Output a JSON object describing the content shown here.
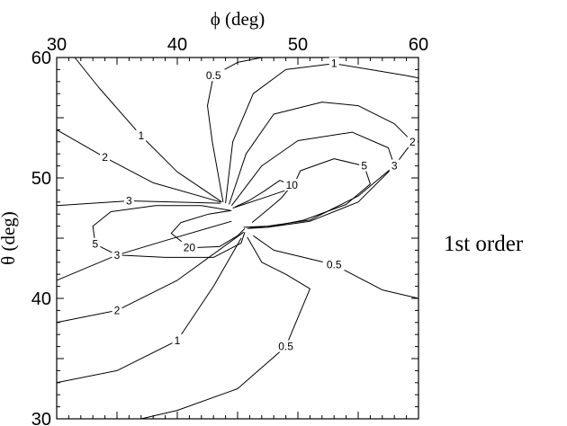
{
  "chart_data": {
    "type": "contour",
    "xlabel": "ϕ (deg)",
    "ylabel": "θ (deg)",
    "xlim": [
      30,
      60
    ],
    "ylim": [
      30,
      60
    ],
    "x_ticks": [
      30,
      40,
      50,
      60
    ],
    "y_ticks": [
      30,
      40,
      50,
      60
    ],
    "x_axis_position": "top",
    "annotation": "1st order",
    "contour_levels": [
      0.5,
      1,
      2,
      3,
      5,
      10,
      20
    ],
    "contours": [
      {
        "label": "0.5",
        "points": [
          [
            43.8,
            48
          ],
          [
            42.9,
            53
          ],
          [
            42.5,
            56
          ],
          [
            43,
            58.5
          ],
          [
            45,
            59.6
          ],
          [
            47,
            60
          ]
        ]
      },
      {
        "label": "1",
        "points": [
          [
            44,
            47.9
          ],
          [
            44.6,
            53
          ],
          [
            46.3,
            57
          ],
          [
            49,
            59
          ],
          [
            53,
            59.5
          ],
          [
            56,
            59
          ],
          [
            59,
            58.5
          ],
          [
            60,
            58.3
          ]
        ]
      },
      {
        "label": "2",
        "points": [
          [
            44.3,
            47.8
          ],
          [
            45.7,
            52
          ],
          [
            48,
            55.3
          ],
          [
            52,
            56.3
          ],
          [
            55,
            56
          ],
          [
            58,
            54.5
          ],
          [
            59.5,
            53
          ],
          [
            58,
            51
          ],
          [
            55,
            48.5
          ],
          [
            51,
            46.5
          ],
          [
            47.5,
            46
          ],
          [
            45.5,
            45.9
          ]
        ]
      },
      {
        "label": "3",
        "points": [
          [
            44.5,
            47.7
          ],
          [
            47,
            51
          ],
          [
            50,
            53.1
          ],
          [
            54.5,
            53.8
          ],
          [
            57.5,
            52.5
          ],
          [
            58,
            51
          ],
          [
            55,
            48
          ],
          [
            51,
            46.4
          ],
          [
            47.5,
            45.9
          ],
          [
            45.8,
            45.8
          ]
        ]
      },
      {
        "label": "5",
        "points": [
          [
            44.6,
            47.5
          ],
          [
            47,
            48.3
          ],
          [
            48.8,
            48.9
          ],
          [
            49.7,
            49.5
          ],
          [
            50.2,
            50.6
          ],
          [
            53,
            51.6
          ],
          [
            55.5,
            51
          ],
          [
            56,
            49.5
          ],
          [
            54,
            47.8
          ],
          [
            50.5,
            46.5
          ],
          [
            47.5,
            45.9
          ],
          [
            46,
            45.9
          ]
        ]
      },
      {
        "label": "5",
        "points": [
          [
            44.4,
            47.3
          ],
          [
            42,
            47.7
          ],
          [
            38.2,
            47.7
          ],
          [
            34.5,
            47.2
          ],
          [
            33,
            46
          ],
          [
            33.2,
            44.5
          ],
          [
            35,
            43.6
          ],
          [
            39,
            43.4
          ],
          [
            43,
            43.4
          ],
          [
            45.3,
            44.6
          ],
          [
            45.6,
            45.5
          ]
        ]
      },
      {
        "label": "10",
        "points": [
          [
            44.8,
            47.6
          ],
          [
            45.9,
            48.1
          ],
          [
            47.2,
            48.9
          ],
          [
            48.5,
            49.8
          ],
          [
            49.5,
            49.4
          ],
          [
            48.6,
            48.3
          ],
          [
            47.3,
            47.2
          ],
          [
            46.2,
            46.3
          ]
        ]
      },
      {
        "label": "20",
        "points": [
          [
            44.5,
            47.3
          ],
          [
            42.6,
            47
          ],
          [
            40.3,
            46.3
          ],
          [
            39.5,
            45.4
          ],
          [
            41,
            44.2
          ],
          [
            43.5,
            44.3
          ],
          [
            45,
            45.2
          ],
          [
            45.6,
            45.8
          ]
        ]
      },
      {
        "label": "1",
        "points": [
          [
            43.7,
            48
          ],
          [
            40,
            50.5
          ],
          [
            37,
            53.5
          ],
          [
            33.5,
            57.5
          ],
          [
            31.5,
            60
          ]
        ]
      },
      {
        "label": "2",
        "points": [
          [
            43.6,
            48
          ],
          [
            38,
            49.6
          ],
          [
            34,
            51.7
          ],
          [
            30,
            54
          ]
        ]
      },
      {
        "label": "3",
        "points": [
          [
            43.6,
            47.9
          ],
          [
            36,
            48.1
          ],
          [
            30,
            47.7
          ]
        ]
      },
      {
        "label": "3",
        "points": [
          [
            44.5,
            46.4
          ],
          [
            39,
            44.8
          ],
          [
            35,
            43.6
          ],
          [
            30,
            41.5
          ]
        ]
      },
      {
        "label": "2",
        "points": [
          [
            45.5,
            45.5
          ],
          [
            40,
            41.5
          ],
          [
            35,
            39
          ],
          [
            30,
            38
          ]
        ]
      },
      {
        "label": "1",
        "points": [
          [
            45.3,
            45
          ],
          [
            43,
            41
          ],
          [
            40,
            36.5
          ],
          [
            35,
            34
          ],
          [
            30,
            33
          ]
        ]
      },
      {
        "label": "0.5",
        "points": [
          [
            45.8,
            45.1
          ],
          [
            47,
            43
          ],
          [
            49,
            42
          ],
          [
            51,
            40.8
          ],
          [
            49,
            36
          ],
          [
            45,
            32.5
          ],
          [
            40,
            30.7
          ],
          [
            37,
            30
          ]
        ]
      },
      {
        "label": "0.5",
        "points": [
          [
            46.3,
            45.2
          ],
          [
            48,
            44
          ],
          [
            53,
            42.8
          ],
          [
            57,
            40.7
          ],
          [
            60,
            40
          ]
        ]
      }
    ]
  }
}
